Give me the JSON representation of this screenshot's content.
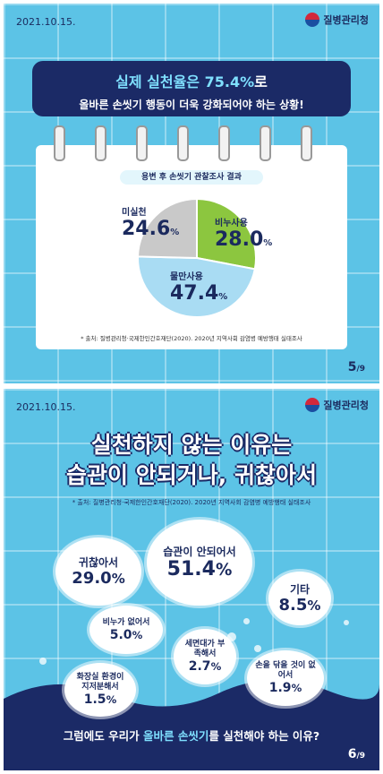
{
  "card1": {
    "date": "2021.10.15.",
    "org": "질병관리청",
    "headline_highlight": "실제 실천율은 75.4%",
    "headline_suffix": "로",
    "subheadline": "올바른 손씻기 행동이 더욱 강화되어야 하는 상황!",
    "survey_title": "용변 후 손씻기 관찰조사 결과",
    "source": "* 출처: 질병관리청·국제한인간호재단(2020). 2020년 지역사회 감염병 예방행태 실태조사",
    "page": "5",
    "page_total": "/9",
    "colors": {
      "soap": "#8cc63f",
      "water": "#a9dcf3",
      "none": "#c9c9c9",
      "navy": "#1b2a66"
    }
  },
  "chart_data": {
    "type": "pie",
    "title": "용변 후 손씻기 관찰조사 결과",
    "slices": [
      {
        "label": "비누사용",
        "value": 28.0,
        "value_text": "28.0",
        "color": "#8cc63f"
      },
      {
        "label": "물만사용",
        "value": 47.4,
        "value_text": "47.4",
        "color": "#a9dcf3"
      },
      {
        "label": "미실천",
        "value": 24.6,
        "value_text": "24.6",
        "color": "#c9c9c9"
      }
    ]
  },
  "card2": {
    "date": "2021.10.15.",
    "org": "질병관리청",
    "title_line1": "실천하지 않는 이유는",
    "title_line2": "습관이 안되거나, 귀찮아서",
    "source": "* 출처: 질병관리청·국제한인간호재단(2020). 2020년 지역사회 감염병 예방행태 실태조사",
    "reasons": [
      {
        "label": "귀찮아서",
        "value": "29.0"
      },
      {
        "label": "습관이 안되어서",
        "value": "51.4"
      },
      {
        "label": "기타",
        "value": "8.5"
      },
      {
        "label": "비누가 없어서",
        "value": "5.0"
      },
      {
        "label": "세면대가 부족해서",
        "value": "2.7"
      },
      {
        "label": "화장실 환경이 지저분해서",
        "value": "1.5"
      },
      {
        "label": "손을 닦을 것이 없어서",
        "value": "1.9"
      }
    ],
    "footer_pre": "그럼에도 우리가 ",
    "footer_highlight": "올바른 손씻기",
    "footer_post": "를 실천해야 하는 이유?",
    "page": "6",
    "page_total": "/9"
  }
}
